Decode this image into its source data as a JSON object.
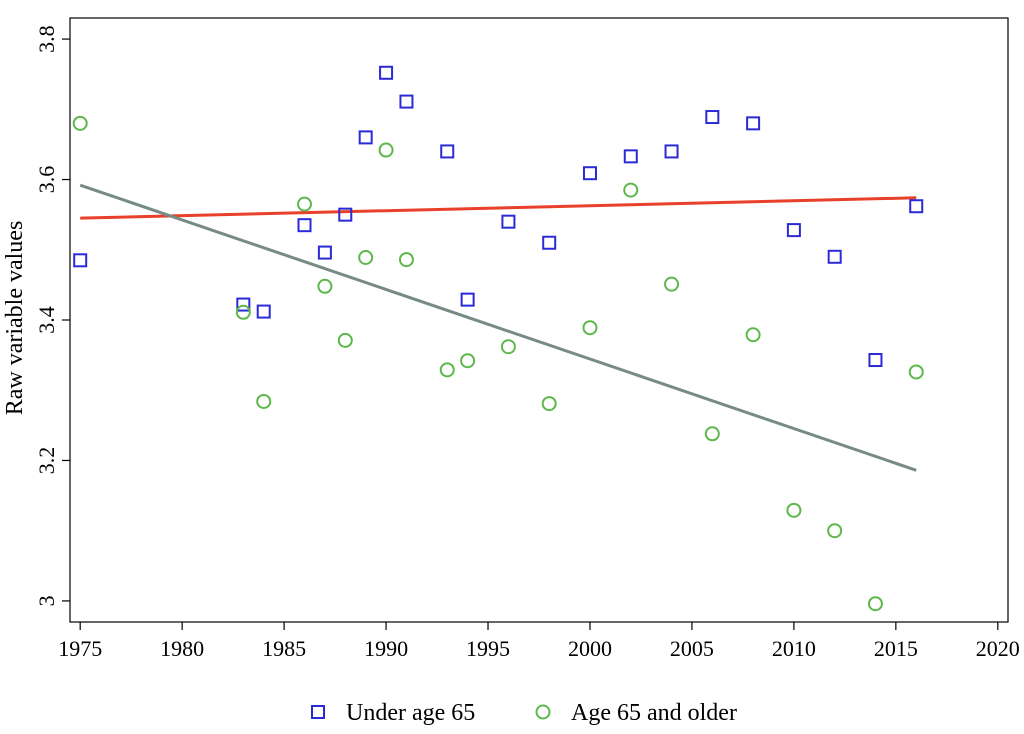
{
  "chart_data": {
    "type": "scatter",
    "ylabel": "Raw variable values",
    "xlabel": "",
    "title": "",
    "xlim": [
      1974.5,
      2020.5
    ],
    "ylim": [
      2.97,
      3.83
    ],
    "x_ticks": [
      1975,
      1980,
      1985,
      1990,
      1995,
      2000,
      2005,
      2010,
      2015,
      2020
    ],
    "y_ticks": [
      3,
      3.2,
      3.4,
      3.6,
      3.8
    ],
    "y_tick_labels": [
      "3",
      "3.2",
      "3.4",
      "3.6",
      "3.8"
    ],
    "legend_position": "bottom",
    "grid": false,
    "series": [
      {
        "name": "Under age 65",
        "marker": "square",
        "color": "#2a2ad6",
        "points": [
          [
            1975,
            3.485
          ],
          [
            1983,
            3.422
          ],
          [
            1984,
            3.412
          ],
          [
            1986,
            3.535
          ],
          [
            1987,
            3.496
          ],
          [
            1988,
            3.55
          ],
          [
            1989,
            3.66
          ],
          [
            1990,
            3.752
          ],
          [
            1991,
            3.711
          ],
          [
            1993,
            3.64
          ],
          [
            1994,
            3.429
          ],
          [
            1996,
            3.54
          ],
          [
            1998,
            3.51
          ],
          [
            2000,
            3.609
          ],
          [
            2002,
            3.633
          ],
          [
            2004,
            3.64
          ],
          [
            2006,
            3.689
          ],
          [
            2008,
            3.68
          ],
          [
            2010,
            3.528
          ],
          [
            2012,
            3.49
          ],
          [
            2014,
            3.343
          ],
          [
            2016,
            3.562
          ]
        ]
      },
      {
        "name": "Age 65 and older",
        "marker": "circle",
        "color": "#5cb84a",
        "points": [
          [
            1975,
            3.68
          ],
          [
            1983,
            3.411
          ],
          [
            1984,
            3.284
          ],
          [
            1986,
            3.565
          ],
          [
            1987,
            3.448
          ],
          [
            1988,
            3.371
          ],
          [
            1989,
            3.489
          ],
          [
            1990,
            3.642
          ],
          [
            1991,
            3.486
          ],
          [
            1993,
            3.329
          ],
          [
            1994,
            3.342
          ],
          [
            1996,
            3.362
          ],
          [
            1998,
            3.281
          ],
          [
            2000,
            3.389
          ],
          [
            2002,
            3.585
          ],
          [
            2004,
            3.451
          ],
          [
            2006,
            3.238
          ],
          [
            2008,
            3.379
          ],
          [
            2010,
            3.129
          ],
          [
            2012,
            3.1
          ],
          [
            2014,
            2.996
          ],
          [
            2016,
            3.326
          ]
        ]
      }
    ],
    "fit_lines": [
      {
        "color": "#e8402a",
        "x": [
          1975,
          2016
        ],
        "y": [
          3.545,
          3.574
        ]
      },
      {
        "color": "#768b86",
        "x": [
          1975,
          2016
        ],
        "y": [
          3.592,
          3.186
        ]
      }
    ]
  }
}
